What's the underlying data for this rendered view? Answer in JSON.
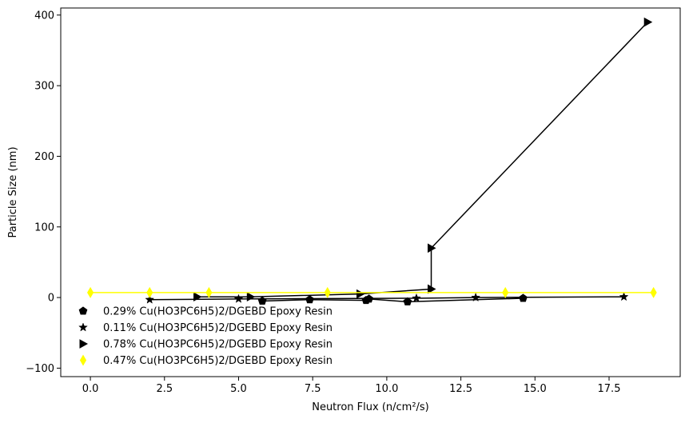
{
  "chart_data": {
    "type": "line",
    "xlabel": "Neutron Flux (n/cm²/s)",
    "ylabel": "Particle Size (nm)",
    "xlim": [
      -1.0,
      19.9
    ],
    "ylim": [
      -112,
      410
    ],
    "x_ticks": [
      0.0,
      2.5,
      5.0,
      7.5,
      10.0,
      12.5,
      15.0,
      17.5
    ],
    "x_tick_labels": [
      "0.0",
      "2.5",
      "5.0",
      "7.5",
      "10.0",
      "12.5",
      "15.0",
      "17.5"
    ],
    "y_ticks": [
      -100,
      0,
      100,
      200,
      300,
      400
    ],
    "y_tick_labels": [
      "−100",
      "0",
      "100",
      "200",
      "300",
      "400"
    ],
    "legend_position": "lower-left",
    "grid": false,
    "series": [
      {
        "name": "0.29% Cu(HO3PC6H5)2/DGEBD Epoxy Resin",
        "marker": "pentagon",
        "color": "#000000",
        "x": [
          5.8,
          7.4,
          9.3,
          9.4,
          10.7,
          14.6
        ],
        "y": [
          -5,
          -3,
          -4,
          -2,
          -6,
          -1
        ]
      },
      {
        "name": "0.11% Cu(HO3PC6H5)2/DGEBD Epoxy Resin",
        "marker": "star",
        "color": "#000000",
        "x": [
          2.0,
          5.0,
          11.0,
          13.0,
          18.0
        ],
        "y": [
          -3,
          -2,
          -1,
          0,
          1
        ]
      },
      {
        "name": "0.78% Cu(HO3PC6H5)2/DGEBD Epoxy Resin",
        "marker": "triangle-right",
        "color": "#000000",
        "x": [
          3.6,
          5.4,
          9.1,
          11.5,
          11.5,
          18.8
        ],
        "y": [
          1,
          1,
          5,
          12,
          70,
          390
        ]
      },
      {
        "name": "0.47% Cu(HO3PC6H5)2/DGEBD Epoxy Resin",
        "marker": "thin-diamond",
        "color": "#ffff00",
        "x": [
          0.0,
          2.0,
          4.0,
          8.0,
          14.0,
          19.0
        ],
        "y": [
          7,
          7,
          7,
          7,
          7,
          7
        ]
      }
    ]
  }
}
